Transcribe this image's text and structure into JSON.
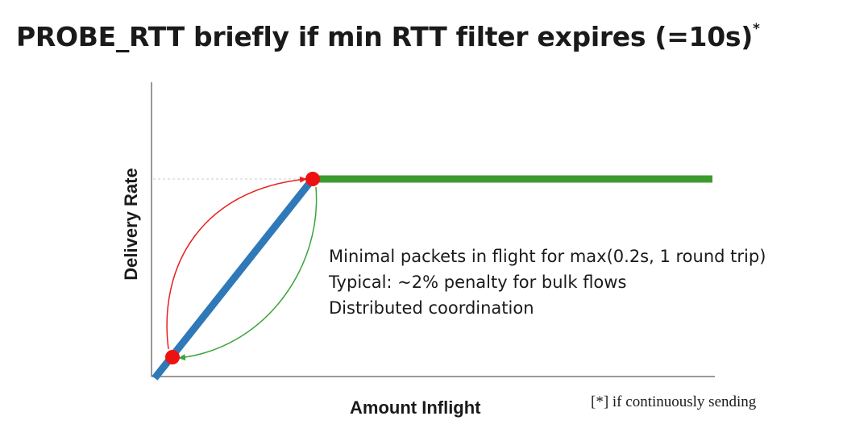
{
  "title": {
    "text": "PROBE_RTT briefly if min RTT filter expires (=10s)",
    "superscript": "*"
  },
  "axes": {
    "y_label": "Delivery Rate",
    "x_label": "Amount Inflight"
  },
  "notes": [
    "Minimal packets in flight for max(0.2s, 1 round trip)",
    "Typical: ~2% penalty for bulk flows",
    "Distributed coordination"
  ],
  "footnote": "[*] if continuously sending",
  "colors": {
    "rising_segment": "#2f79b9",
    "plateau_segment": "#3d9a2e",
    "forward_arrow": "#e82020",
    "return_arrow": "#3aa53a",
    "points": "#ee1111",
    "axes": "#999999"
  }
}
